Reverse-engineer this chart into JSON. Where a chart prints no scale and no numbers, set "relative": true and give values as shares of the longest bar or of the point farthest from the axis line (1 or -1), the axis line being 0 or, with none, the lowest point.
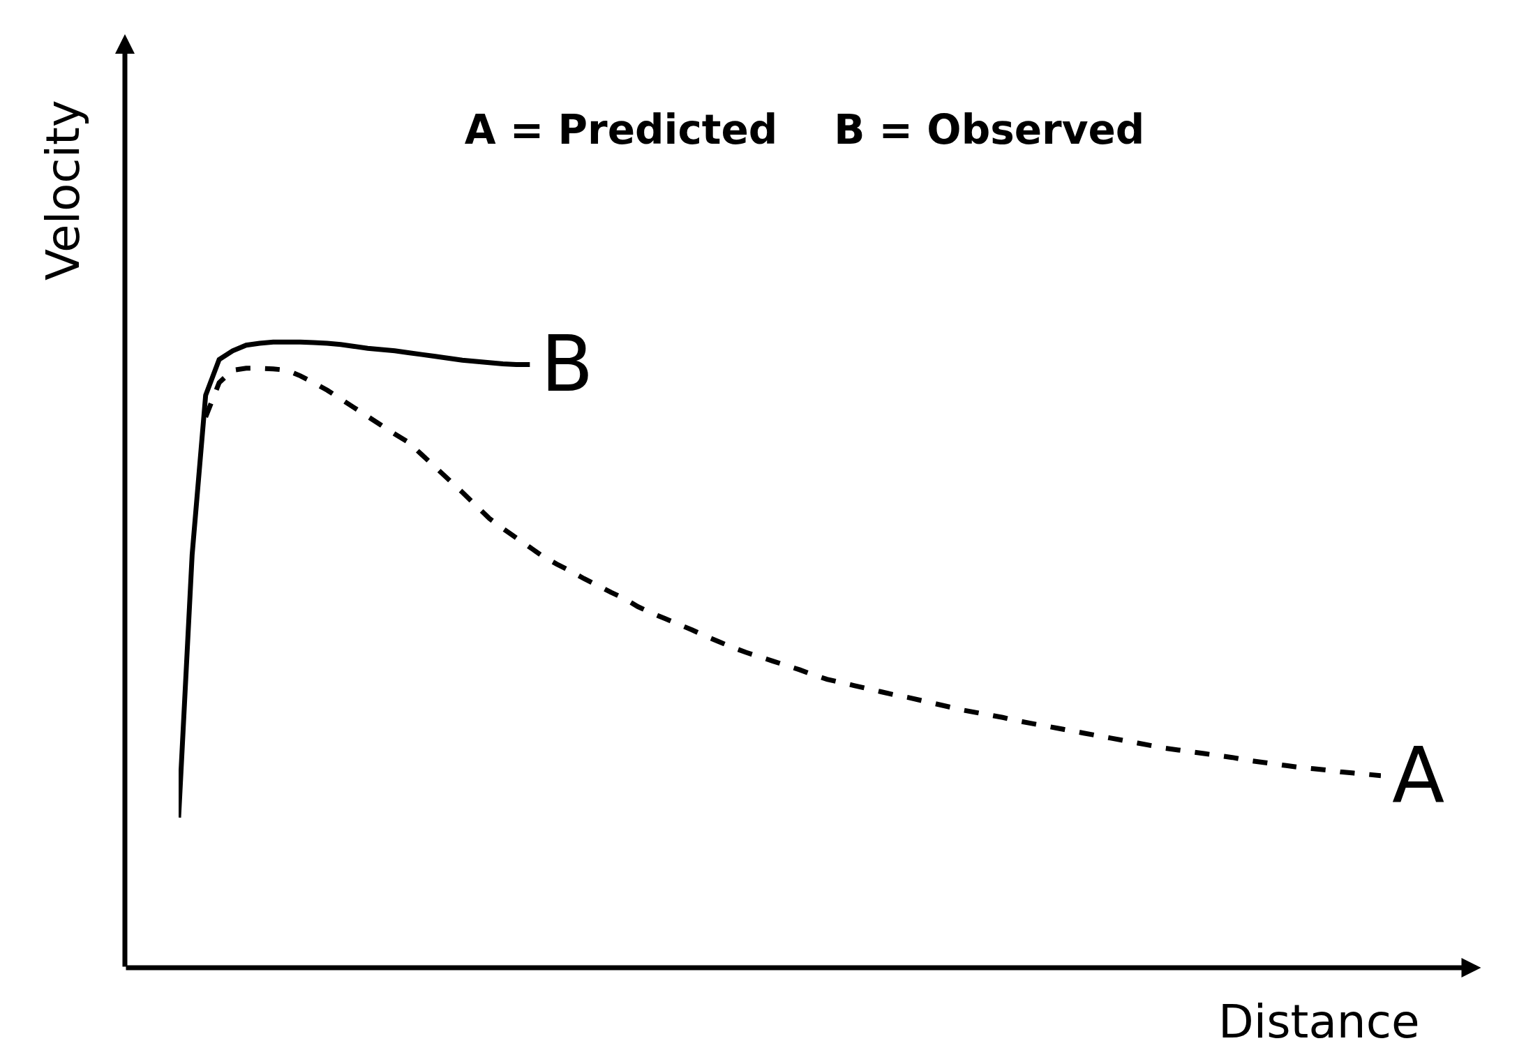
{
  "chart_data": {
    "type": "line",
    "relative": true,
    "title": "A = Predicted    B = Observed",
    "xlabel": "Distance",
    "ylabel": "Velocity",
    "legend": false,
    "marker": "none",
    "categories": [
      null,
      null,
      null,
      null,
      null,
      null,
      null,
      null,
      null,
      null,
      null,
      null,
      null,
      null,
      null,
      null,
      null,
      null,
      null,
      null,
      null,
      null,
      null,
      null,
      null,
      null,
      null,
      null,
      null,
      null,
      null,
      null,
      null,
      null,
      null,
      null,
      null,
      null,
      null,
      null,
      null,
      null,
      null,
      null,
      null,
      null,
      null,
      null,
      null,
      null,
      null,
      null,
      null,
      null,
      null,
      null,
      null,
      null,
      null,
      null,
      null,
      null,
      null,
      null,
      null,
      null,
      null,
      null,
      null,
      null,
      null,
      null,
      null,
      null,
      null,
      null,
      null,
      null,
      null,
      null,
      null,
      null,
      null,
      null,
      null,
      null,
      null,
      null,
      null,
      null
    ],
    "series": [
      {
        "name": "B",
        "color": "#000000",
        "line_style": "solid",
        "values": [
          0.24,
          0.66,
          0.915,
          0.972,
          0.986,
          0.995,
          0.998,
          1.0,
          1.0,
          1.0,
          0.999,
          0.998,
          0.996,
          0.993,
          0.99,
          0.988,
          0.986,
          0.983,
          0.98,
          0.977,
          0.974,
          0.971,
          0.969,
          0.967,
          0.965,
          0.964,
          0.964,
          null,
          null,
          null,
          null,
          null,
          null,
          null,
          null,
          null,
          null,
          null,
          null,
          null,
          null,
          null,
          null,
          null,
          null,
          null,
          null,
          null,
          null,
          null,
          null,
          null,
          null,
          null,
          null,
          null,
          null,
          null,
          null,
          null,
          null,
          null,
          null,
          null,
          null,
          null,
          null,
          null,
          null,
          null,
          null,
          null,
          null,
          null,
          null,
          null,
          null,
          null,
          null,
          null,
          null,
          null,
          null,
          null,
          null,
          null,
          null,
          null,
          null,
          null
        ]
      },
      {
        "name": "A",
        "color": "#000000",
        "line_style": "dashed",
        "values": [
          null,
          null,
          0.88,
          0.935,
          0.955,
          0.958,
          0.958,
          0.957,
          0.955,
          0.946,
          0.935,
          0.923,
          0.909,
          0.895,
          0.881,
          0.867,
          0.853,
          0.84,
          0.82,
          0.8,
          0.78,
          0.76,
          0.739,
          0.718,
          0.702,
          0.687,
          0.672,
          0.657,
          0.645,
          0.634,
          0.622,
          0.611,
          0.6,
          0.59,
          0.577,
          0.567,
          0.558,
          0.549,
          0.54,
          0.53,
          0.521,
          0.512,
          0.504,
          0.497,
          0.49,
          0.483,
          0.476,
          0.468,
          0.461,
          0.456,
          0.451,
          0.446,
          0.441,
          0.436,
          0.432,
          0.427,
          0.422,
          0.417,
          0.412,
          0.408,
          0.404,
          0.4,
          0.395,
          0.391,
          0.387,
          0.383,
          0.379,
          0.375,
          0.371,
          0.367,
          0.363,
          0.359,
          0.355,
          0.351,
          0.348,
          0.345,
          0.342,
          0.339,
          0.336,
          0.332,
          0.329,
          0.326,
          0.323,
          0.32,
          0.318,
          0.316,
          0.313,
          0.311,
          0.309,
          0.307
        ]
      }
    ]
  }
}
